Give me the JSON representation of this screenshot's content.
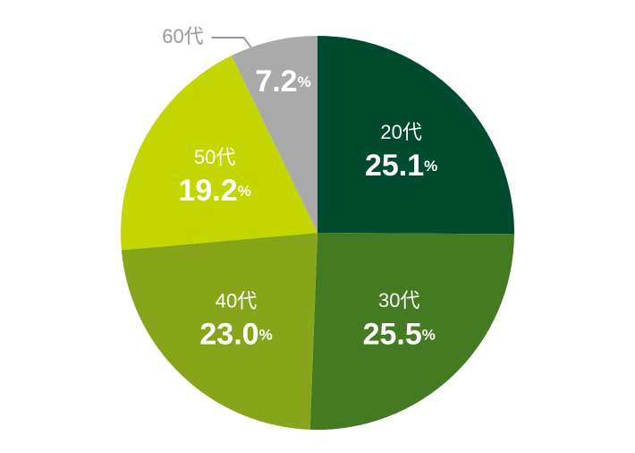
{
  "chart_data": {
    "type": "pie",
    "categories": [
      "20代",
      "30代",
      "40代",
      "50代",
      "60代"
    ],
    "values": [
      25.1,
      25.5,
      23.0,
      19.2,
      7.2
    ],
    "value_labels": [
      "25.1%",
      "25.5%",
      "23.0%",
      "19.2%",
      "7.2%"
    ],
    "colors": [
      "#004b2f",
      "#437a22",
      "#86a51a",
      "#c4d600",
      "#aaaaaa"
    ]
  }
}
